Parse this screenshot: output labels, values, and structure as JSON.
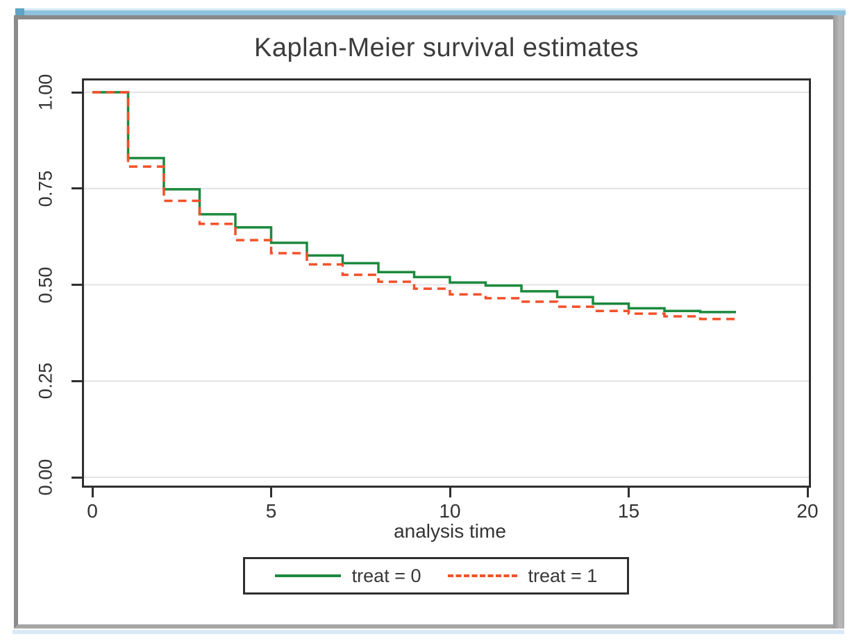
{
  "window": {
    "top_strip_color": "#8fc3dd",
    "top_strip_highlight": "#d7eaf4",
    "top_accent_color": "#5fa3c4",
    "frame_color": "#8a8a8a",
    "bottom_strip_color": "#d9e9f7"
  },
  "chart_data": {
    "type": "line",
    "variant": "kaplan-meier-step",
    "title": "Kaplan-Meier survival estimates",
    "xlabel": "analysis time",
    "ylabel": "",
    "xlim": [
      0,
      20.1
    ],
    "ylim": [
      0,
      1
    ],
    "grid": true,
    "grid_color": "#e4e4e4",
    "axis_color": "#2f2f2f",
    "x_ticks": [
      0,
      5,
      10,
      15,
      20
    ],
    "y_ticks": [
      {
        "value": 0.0,
        "label": "0.00"
      },
      {
        "value": 0.25,
        "label": "0.25"
      },
      {
        "value": 0.5,
        "label": "0.50"
      },
      {
        "value": 0.75,
        "label": "0.75"
      },
      {
        "value": 1.0,
        "label": "1.00"
      }
    ],
    "legend_position": "bottom-center",
    "series": [
      {
        "name": "treat = 0",
        "color": "#1b8a3e",
        "line_style": "solid",
        "points": [
          [
            0,
            1.0
          ],
          [
            1,
            0.829
          ],
          [
            2,
            0.748
          ],
          [
            3,
            0.683
          ],
          [
            4,
            0.649
          ],
          [
            5,
            0.609
          ],
          [
            6,
            0.576
          ],
          [
            7,
            0.556
          ],
          [
            8,
            0.533
          ],
          [
            9,
            0.52
          ],
          [
            10,
            0.506
          ],
          [
            11,
            0.498
          ],
          [
            12,
            0.483
          ],
          [
            13,
            0.468
          ],
          [
            14,
            0.451
          ],
          [
            15,
            0.439
          ],
          [
            16,
            0.432
          ],
          [
            17,
            0.429
          ],
          [
            18,
            0.429
          ]
        ]
      },
      {
        "name": "treat = 1",
        "color": "#f4502a",
        "line_style": "dashed",
        "points": [
          [
            0,
            1.0
          ],
          [
            1,
            0.807
          ],
          [
            2,
            0.718
          ],
          [
            3,
            0.658
          ],
          [
            4,
            0.616
          ],
          [
            5,
            0.582
          ],
          [
            6,
            0.553
          ],
          [
            7,
            0.526
          ],
          [
            8,
            0.508
          ],
          [
            9,
            0.49
          ],
          [
            10,
            0.475
          ],
          [
            11,
            0.465
          ],
          [
            12,
            0.456
          ],
          [
            13,
            0.443
          ],
          [
            14,
            0.432
          ],
          [
            15,
            0.425
          ],
          [
            16,
            0.418
          ],
          [
            17,
            0.411
          ],
          [
            18,
            0.411
          ]
        ]
      }
    ]
  }
}
